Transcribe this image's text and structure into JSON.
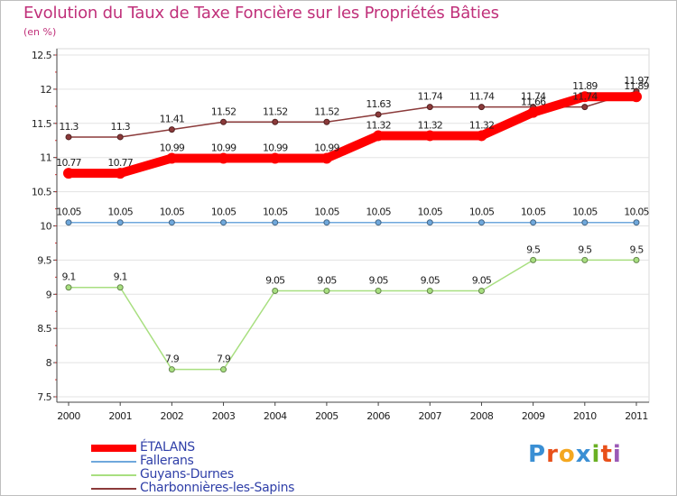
{
  "title": "Evolution du Taux de Taxe Foncière sur les Propriétés Bâties",
  "subtitle": "(en %)",
  "logo": {
    "letters": [
      "P",
      "r",
      "o",
      "x",
      "i",
      "t",
      "i"
    ],
    "colors": [
      "#3a8fd4",
      "#e8501a",
      "#f4a71f",
      "#3a8fd4",
      "#6ab023",
      "#e8501a",
      "#9b59b6"
    ]
  },
  "chart_data": {
    "type": "line",
    "title": "Evolution du Taux de Taxe Foncière sur les Propriétés Bâties",
    "ylabel": "(en %)",
    "x": [
      "2000",
      "2001",
      "2002",
      "2003",
      "2004",
      "2005",
      "2006",
      "2007",
      "2008",
      "2009",
      "2010",
      "2011"
    ],
    "ylim": [
      7.5,
      12.5
    ],
    "yticks": [
      "7.5",
      "8",
      "8.5",
      "9",
      "9.5",
      "10",
      "10.5",
      "11",
      "11.5",
      "12",
      "12.5"
    ],
    "grid": "horizontal",
    "series": [
      {
        "name": "ÉTALANS",
        "color": "#ff0000",
        "width": 10,
        "values": [
          10.77,
          10.77,
          10.99,
          10.99,
          10.99,
          10.99,
          11.32,
          11.32,
          11.32,
          11.66,
          11.89,
          11.89
        ],
        "labels": [
          "10.77",
          "10.77",
          "10.99",
          "10.99",
          "10.99",
          "10.99",
          "11.32",
          "11.32",
          "11.32",
          "11.66",
          "11.89",
          "11.89"
        ]
      },
      {
        "name": "Fallerans",
        "color": "#6fa8dc",
        "width": 1.5,
        "values": [
          10.05,
          10.05,
          10.05,
          10.05,
          10.05,
          10.05,
          10.05,
          10.05,
          10.05,
          10.05,
          10.05,
          10.05
        ],
        "labels": [
          "10.05",
          "10.05",
          "10.05",
          "10.05",
          "10.05",
          "10.05",
          "10.05",
          "10.05",
          "10.05",
          "10.05",
          "10.05",
          "10.05"
        ]
      },
      {
        "name": "Guyans-Durnes",
        "color": "#a8df80",
        "width": 1.5,
        "values": [
          9.1,
          9.1,
          7.9,
          7.9,
          9.05,
          9.05,
          9.05,
          9.05,
          9.05,
          9.5,
          9.5,
          9.5
        ],
        "labels": [
          "9.1",
          "9.1",
          "7.9",
          "7.9",
          "9.05",
          "9.05",
          "9.05",
          "9.05",
          "9.05",
          "9.5",
          "9.5",
          "9.5"
        ]
      },
      {
        "name": "Charbonnières-les-Sapins",
        "color": "#8b3a3a",
        "width": 1.5,
        "values": [
          11.3,
          11.3,
          11.41,
          11.52,
          11.52,
          11.52,
          11.63,
          11.74,
          11.74,
          11.74,
          11.74,
          11.97
        ],
        "labels": [
          "11.3",
          "11.3",
          "11.41",
          "11.52",
          "11.52",
          "11.52",
          "11.63",
          "11.74",
          "11.74",
          "11.74",
          "11.74",
          "11.97"
        ]
      }
    ]
  }
}
